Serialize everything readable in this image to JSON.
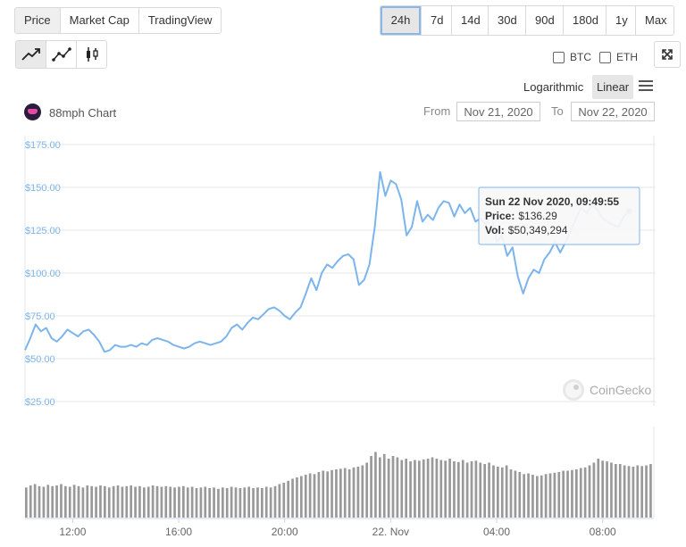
{
  "data_tabs": [
    "Price",
    "Market Cap",
    "TradingView"
  ],
  "range_tabs": [
    "24h",
    "7d",
    "14d",
    "30d",
    "90d",
    "180d",
    "1y",
    "Max"
  ],
  "chart_type_icons": [
    "line-chart-icon",
    "ohlc-line-chart-icon",
    "candlestick-chart-icon"
  ],
  "compare": [
    "BTC",
    "ETH"
  ],
  "scale": {
    "log_label": "Logarithmic",
    "linear_label": "Linear",
    "selected": "Linear"
  },
  "chart_title": "88mph Chart",
  "from_label": "From",
  "from_value": "Nov 21, 2020",
  "to_label": "To",
  "to_value": "Nov 22, 2020",
  "watermark": "CoinGecko",
  "tooltip": {
    "date": "Sun 22 Nov 2020, 09:49:55",
    "price_label": "Price:",
    "price_value": "$136.29",
    "vol_label": "Vol:",
    "vol_value": "$50,349,294"
  },
  "colors": {
    "line": "#7cb5ec",
    "volume": "#999999",
    "tooltip_border": "#7cb5ec"
  },
  "chart_data": {
    "type": "line",
    "y_ticks": [
      "$175.00",
      "$150.00",
      "$125.00",
      "$100.00",
      "$75.00",
      "$50.00",
      "$25.00"
    ],
    "y_tick_values": [
      175,
      150,
      125,
      100,
      75,
      50,
      25
    ],
    "ylim": [
      25,
      175
    ],
    "x_ticks": [
      "12:00",
      "16:00",
      "20:00",
      "22. Nov",
      "04:00",
      "08:00"
    ],
    "x_tick_hours": [
      12,
      16,
      20,
      24,
      28,
      32
    ],
    "xlim_hours": [
      10.2,
      34
    ],
    "grid": true,
    "price": [
      [
        10.2,
        55
      ],
      [
        10.4,
        62
      ],
      [
        10.6,
        70
      ],
      [
        10.8,
        66
      ],
      [
        11.0,
        68
      ],
      [
        11.2,
        62
      ],
      [
        11.4,
        60
      ],
      [
        11.6,
        63
      ],
      [
        11.8,
        67
      ],
      [
        12.0,
        65
      ],
      [
        12.2,
        63
      ],
      [
        12.4,
        66
      ],
      [
        12.6,
        67
      ],
      [
        12.8,
        64
      ],
      [
        13.0,
        60
      ],
      [
        13.2,
        54
      ],
      [
        13.4,
        55
      ],
      [
        13.6,
        58
      ],
      [
        13.8,
        57
      ],
      [
        14.0,
        57
      ],
      [
        14.2,
        58
      ],
      [
        14.4,
        57
      ],
      [
        14.6,
        59
      ],
      [
        14.8,
        58
      ],
      [
        15.0,
        61
      ],
      [
        15.2,
        62
      ],
      [
        15.4,
        61
      ],
      [
        15.6,
        60
      ],
      [
        15.8,
        58
      ],
      [
        16.0,
        57
      ],
      [
        16.2,
        56
      ],
      [
        16.4,
        57
      ],
      [
        16.6,
        59
      ],
      [
        16.8,
        60
      ],
      [
        17.0,
        59
      ],
      [
        17.2,
        58
      ],
      [
        17.4,
        59
      ],
      [
        17.6,
        60
      ],
      [
        17.8,
        63
      ],
      [
        18.0,
        68
      ],
      [
        18.2,
        70
      ],
      [
        18.4,
        67
      ],
      [
        18.6,
        71
      ],
      [
        18.8,
        74
      ],
      [
        19.0,
        73
      ],
      [
        19.2,
        76
      ],
      [
        19.4,
        79
      ],
      [
        19.6,
        80
      ],
      [
        19.8,
        78
      ],
      [
        20.0,
        75
      ],
      [
        20.2,
        73
      ],
      [
        20.4,
        77
      ],
      [
        20.6,
        80
      ],
      [
        20.8,
        88
      ],
      [
        21.0,
        97
      ],
      [
        21.2,
        90
      ],
      [
        21.4,
        100
      ],
      [
        21.6,
        105
      ],
      [
        21.8,
        103
      ],
      [
        22.0,
        107
      ],
      [
        22.2,
        110
      ],
      [
        22.4,
        111
      ],
      [
        22.6,
        108
      ],
      [
        22.8,
        93
      ],
      [
        23.0,
        96
      ],
      [
        23.2,
        105
      ],
      [
        23.4,
        127
      ],
      [
        23.6,
        159
      ],
      [
        23.8,
        145
      ],
      [
        24.0,
        154
      ],
      [
        24.2,
        152
      ],
      [
        24.4,
        143
      ],
      [
        24.6,
        122
      ],
      [
        24.8,
        127
      ],
      [
        25.0,
        142
      ],
      [
        25.2,
        130
      ],
      [
        25.4,
        134
      ],
      [
        25.6,
        131
      ],
      [
        25.8,
        138
      ],
      [
        26.0,
        142
      ],
      [
        26.2,
        141
      ],
      [
        26.4,
        133
      ],
      [
        26.6,
        140
      ],
      [
        26.8,
        135
      ],
      [
        27.0,
        138
      ],
      [
        27.2,
        130
      ],
      [
        27.4,
        132
      ],
      [
        27.6,
        128
      ],
      [
        27.8,
        135
      ],
      [
        28.0,
        118
      ],
      [
        28.2,
        122
      ],
      [
        28.4,
        110
      ],
      [
        28.6,
        115
      ],
      [
        28.8,
        98
      ],
      [
        29.0,
        88
      ],
      [
        29.2,
        97
      ],
      [
        29.4,
        102
      ],
      [
        29.6,
        100
      ],
      [
        29.8,
        108
      ],
      [
        30.0,
        112
      ],
      [
        30.2,
        118
      ],
      [
        30.4,
        112
      ],
      [
        30.6,
        118
      ],
      [
        30.8,
        125
      ],
      [
        31.0,
        132
      ],
      [
        31.2,
        138
      ],
      [
        31.4,
        135
      ],
      [
        31.6,
        140
      ],
      [
        31.8,
        137
      ],
      [
        32.0,
        132
      ],
      [
        32.2,
        130
      ],
      [
        32.4,
        128
      ],
      [
        32.6,
        127
      ],
      [
        32.8,
        133
      ],
      [
        33.0,
        136
      ]
    ],
    "volume_relative": [
      0.45,
      0.48,
      0.5,
      0.47,
      0.46,
      0.49,
      0.47,
      0.48,
      0.5,
      0.47,
      0.46,
      0.49,
      0.47,
      0.45,
      0.48,
      0.47,
      0.46,
      0.48,
      0.47,
      0.45,
      0.47,
      0.48,
      0.46,
      0.47,
      0.48,
      0.46,
      0.47,
      0.45,
      0.46,
      0.48,
      0.47,
      0.46,
      0.47,
      0.46,
      0.45,
      0.46,
      0.47,
      0.45,
      0.46,
      0.44,
      0.45,
      0.46,
      0.44,
      0.45,
      0.43,
      0.45,
      0.44,
      0.46,
      0.45,
      0.44,
      0.45,
      0.46,
      0.44,
      0.45,
      0.44,
      0.46,
      0.45,
      0.47,
      0.5,
      0.52,
      0.55,
      0.58,
      0.6,
      0.62,
      0.64,
      0.66,
      0.65,
      0.68,
      0.7,
      0.69,
      0.71,
      0.72,
      0.73,
      0.74,
      0.72,
      0.75,
      0.76,
      0.78,
      0.82,
      0.92,
      0.98,
      0.9,
      0.95,
      0.88,
      0.92,
      0.9,
      0.86,
      0.88,
      0.84,
      0.86,
      0.85,
      0.87,
      0.88,
      0.9,
      0.88,
      0.86,
      0.85,
      0.88,
      0.84,
      0.83,
      0.86,
      0.82,
      0.84,
      0.85,
      0.82,
      0.8,
      0.82,
      0.78,
      0.76,
      0.75,
      0.78,
      0.72,
      0.7,
      0.68,
      0.65,
      0.66,
      0.64,
      0.62,
      0.63,
      0.65,
      0.66,
      0.67,
      0.68,
      0.7,
      0.7,
      0.71,
      0.72,
      0.74,
      0.75,
      0.78,
      0.82,
      0.88,
      0.85,
      0.84,
      0.82,
      0.8,
      0.8,
      0.78,
      0.77,
      0.76,
      0.78,
      0.77,
      0.78,
      0.8
    ]
  }
}
